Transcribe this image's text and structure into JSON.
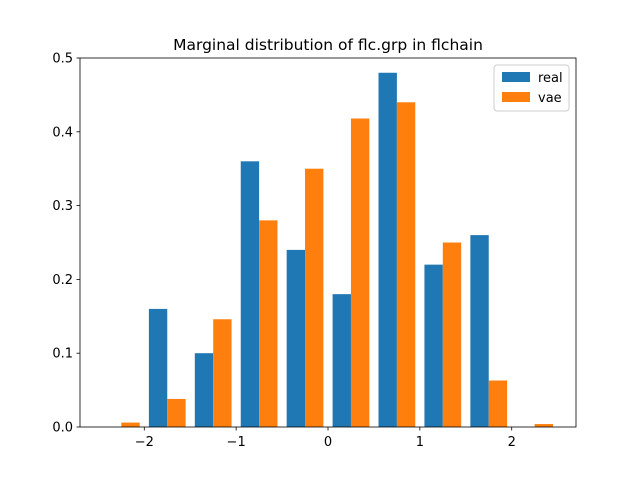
{
  "chart_data": {
    "type": "bar",
    "title": "Marginal distribution of flc.grp in flchain",
    "xlabel": "",
    "ylabel": "",
    "xlim": [
      -2.7,
      2.7
    ],
    "ylim": [
      0,
      0.5
    ],
    "x_ticks": [
      -2,
      -1,
      0,
      1,
      2
    ],
    "x_tick_labels": [
      "−2",
      "−1",
      "0",
      "1",
      "2"
    ],
    "y_ticks": [
      0,
      0.1,
      0.2,
      0.3,
      0.4,
      0.5
    ],
    "y_tick_labels": [
      "0.0",
      "0.1",
      "0.2",
      "0.3",
      "0.4",
      "0.5"
    ],
    "grid": false,
    "legend_position": "top-right",
    "bin_edges": [
      -2.5,
      -2.0,
      -1.5,
      -1.0,
      -0.5,
      0.0,
      0.5,
      1.0,
      1.5,
      2.0,
      2.5
    ],
    "series": [
      {
        "name": "real",
        "color": "#1f77b4",
        "values": [
          0,
          0.16,
          0.1,
          0.36,
          0.24,
          0.18,
          0.48,
          0.22,
          0.26,
          0
        ]
      },
      {
        "name": "vae",
        "color": "#ff7f0e",
        "values": [
          0.006,
          0.038,
          0.146,
          0.28,
          0.35,
          0.418,
          0.44,
          0.25,
          0.063,
          0.004
        ]
      }
    ]
  }
}
